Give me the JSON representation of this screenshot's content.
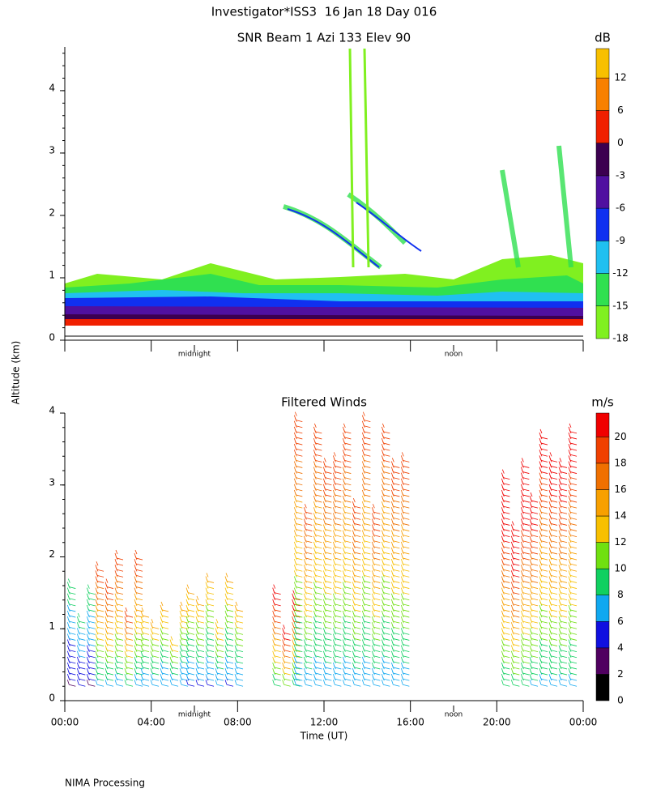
{
  "title": "Investigator*ISS3  16 Jan 18 Day 016",
  "footer": "NIMA Processing",
  "ylabel": "Altitude (km)",
  "chart_data": [
    {
      "type": "heatmap",
      "title": "SNR Beam 1 Azi 133 Elev 90",
      "xlim": [
        0,
        24
      ],
      "xticks": [
        0,
        4,
        8,
        12,
        16,
        20,
        24
      ],
      "ylim": [
        0,
        4.7
      ],
      "yticks": [
        0,
        1,
        2,
        3,
        4
      ],
      "annotations": [
        {
          "text": "midnight",
          "x": 6
        },
        {
          "text": "noon",
          "x": 18
        }
      ],
      "colorbar": {
        "label": "dB",
        "ticks": [
          -18,
          -15,
          -12,
          -9,
          -6,
          -3,
          0,
          6,
          12
        ],
        "colors": [
          "#80f020",
          "#30e050",
          "#20c0f0",
          "#1030f0",
          "#5010a0",
          "#3c0050",
          "#f02000",
          "#f88000",
          "#f8c000"
        ]
      }
    },
    {
      "type": "wind-barbs",
      "title": "Filtered Winds",
      "xlabel": "Time (UT)",
      "xlim": [
        0,
        24
      ],
      "xticks": [
        {
          "value": 0,
          "label": "00:00"
        },
        {
          "value": 4,
          "label": "04:00"
        },
        {
          "value": 8,
          "label": "08:00"
        },
        {
          "value": 12,
          "label": "12:00"
        },
        {
          "value": 16,
          "label": "16:00"
        },
        {
          "value": 20,
          "label": "20:00"
        },
        {
          "value": 24,
          "label": "00:00"
        }
      ],
      "ylim": [
        0,
        4
      ],
      "yticks": [
        0,
        1,
        2,
        3,
        4
      ],
      "annotations": [
        {
          "text": "midnight",
          "x": 6
        },
        {
          "text": "noon",
          "x": 18
        }
      ],
      "colorbar": {
        "label": "m/s",
        "ticks": [
          0,
          2,
          4,
          6,
          8,
          10,
          12,
          14,
          16,
          18,
          20
        ],
        "colors": [
          "#000000",
          "#500060",
          "#1010e0",
          "#10a8f0",
          "#10d060",
          "#70e010",
          "#f8c000",
          "#f8a000",
          "#f07000",
          "#f04000",
          "#f00000"
        ]
      }
    }
  ]
}
